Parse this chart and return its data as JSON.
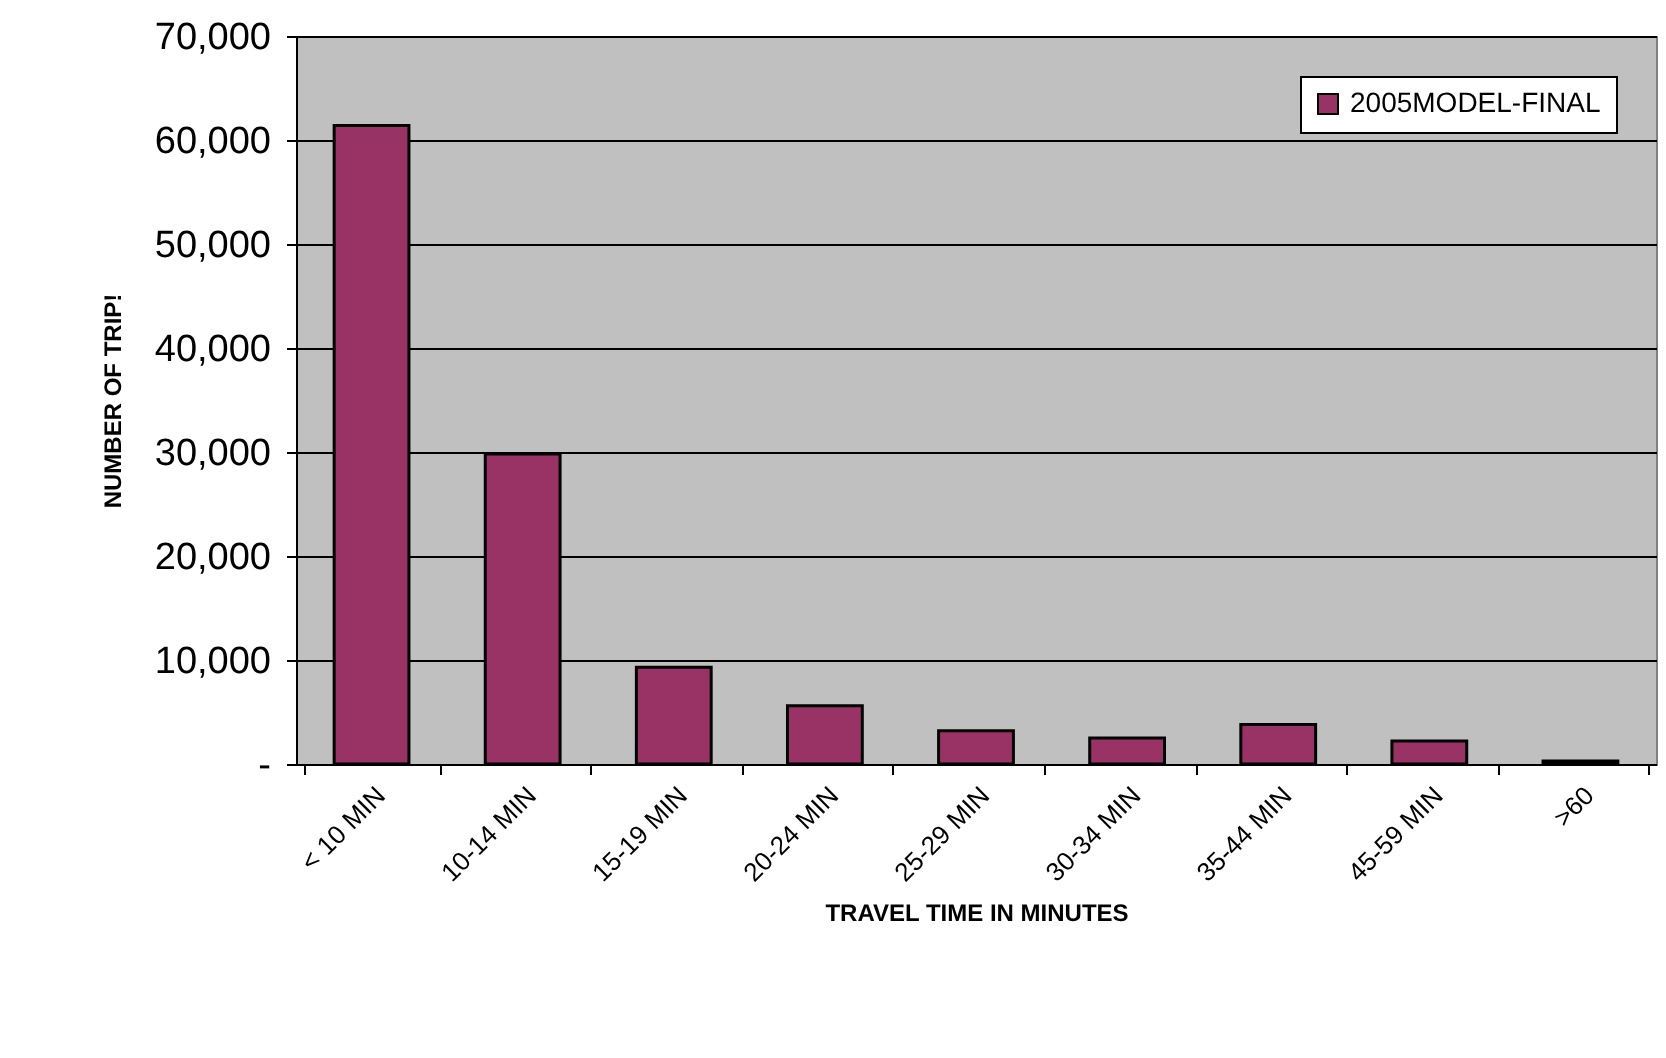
{
  "chart_data": {
    "type": "bar",
    "xlabel": "TRAVEL TIME IN MINUTES",
    "ylabel": "NUMBER OF TRIP!",
    "categories": [
      "< 10 MIN",
      "10-14 MIN",
      "15-19 MIN",
      "20-24 MIN",
      "25-29 MIN",
      "30-34 MIN",
      "35-44 MIN",
      "45-59 MIN",
      ">60"
    ],
    "series": [
      {
        "name": "2005MODEL-FINAL",
        "color": "#993366",
        "values": [
          61400,
          29800,
          9300,
          5600,
          3200,
          2500,
          3800,
          2200,
          300
        ]
      }
    ],
    "ylim": [
      0,
      70000
    ],
    "yticks": [
      {
        "value": 0,
        "label": "-"
      },
      {
        "value": 10000,
        "label": "10,000"
      },
      {
        "value": 20000,
        "label": "20,000"
      },
      {
        "value": 30000,
        "label": "30,000"
      },
      {
        "value": 40000,
        "label": "40,000"
      },
      {
        "value": 50000,
        "label": "50,000"
      },
      {
        "value": 60000,
        "label": "60,000"
      },
      {
        "value": 70000,
        "label": "70,000"
      }
    ],
    "grid": "y",
    "legend": "top right"
  }
}
